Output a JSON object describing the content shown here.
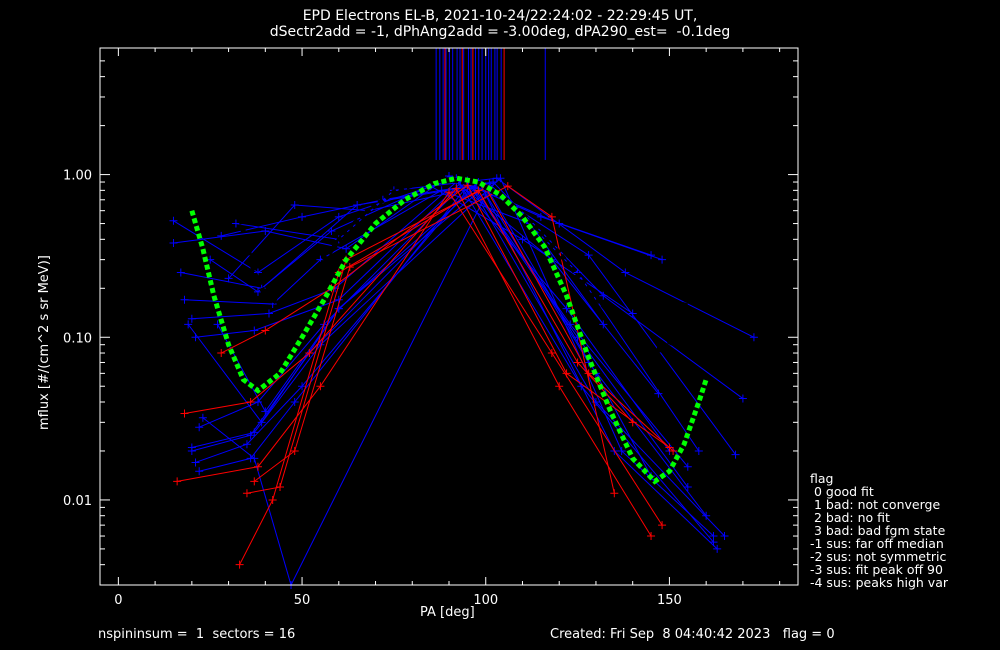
{
  "chart_data": {
    "type": "line",
    "title": "EPD Electrons EL-B, 2021-10-24/22:24:02 - 22:29:45 UT,",
    "subtitle": "dSectr2add = -1, dPhAng2add = -3.00deg, dPA290_est=  -0.1deg",
    "xlabel": "PA [deg]",
    "ylabel": "mflux [#/(cm^2 s sr MeV)]",
    "xlim": [
      -5,
      185
    ],
    "ylim": [
      0.003,
      6
    ],
    "yscale": "log",
    "xticks": [
      "0",
      "50",
      "100",
      "150"
    ],
    "yticks": [
      "0.01",
      "0.10",
      "1.00"
    ],
    "series": [
      {
        "color": "#0000ff",
        "x": [
          15,
          38,
          60,
          92,
          120,
          148
        ],
        "y": [
          0.52,
          0.25,
          0.55,
          0.95,
          0.5,
          0.3
        ]
      },
      {
        "color": "#0000ff",
        "x": [
          15,
          40,
          62,
          90,
          115,
          145
        ],
        "y": [
          0.38,
          0.45,
          0.35,
          0.98,
          0.55,
          0.32
        ]
      },
      {
        "color": "#0000ff",
        "x": [
          17,
          39,
          58,
          85,
          110,
          140
        ],
        "y": [
          0.25,
          0.2,
          0.45,
          0.85,
          0.4,
          0.14
        ]
      },
      {
        "color": "#0000ff",
        "x": [
          18,
          42,
          55,
          88,
          112,
          132
        ],
        "y": [
          0.17,
          0.16,
          0.3,
          0.8,
          0.5,
          0.12
        ]
      },
      {
        "color": "#0000ff",
        "x": [
          20,
          41,
          59,
          92,
          118,
          147
        ],
        "y": [
          0.13,
          0.14,
          0.2,
          0.9,
          0.3,
          0.045
        ]
      },
      {
        "color": "#0000ff",
        "x": [
          21,
          37,
          60,
          93,
          122,
          150
        ],
        "y": [
          0.1,
          0.11,
          0.17,
          0.88,
          0.15,
          0.02
        ]
      },
      {
        "color": "#0000ff",
        "x": [
          22,
          38,
          56,
          95,
          125,
          155
        ],
        "y": [
          0.028,
          0.04,
          0.12,
          0.92,
          0.1,
          0.012
        ]
      },
      {
        "color": "#0000ff",
        "x": [
          20,
          36,
          52,
          98,
          128,
          160
        ],
        "y": [
          0.02,
          0.025,
          0.08,
          0.9,
          0.07,
          0.008
        ]
      },
      {
        "color": "#0000ff",
        "x": [
          21,
          35,
          50,
          96,
          130,
          165
        ],
        "y": [
          0.017,
          0.022,
          0.05,
          0.85,
          0.04,
          0.006
        ]
      },
      {
        "color": "#0000ff",
        "x": [
          22,
          36,
          48,
          94,
          126,
          162
        ],
        "y": [
          0.015,
          0.018,
          0.04,
          0.8,
          0.05,
          0.0055
        ]
      },
      {
        "color": "#0000ff",
        "x": [
          23,
          37,
          47,
          100,
          135,
          163
        ],
        "y": [
          0.032,
          0.018,
          0.003,
          0.75,
          0.02,
          0.005
        ]
      },
      {
        "color": "#0000ff",
        "x": [
          25,
          38,
          65,
          101,
          125,
          158
        ],
        "y": [
          0.3,
          0.19,
          0.65,
          0.88,
          0.25,
          0.02
        ]
      },
      {
        "color": "#0000ff",
        "x": [
          28,
          50,
          72,
          102,
          132,
          170
        ],
        "y": [
          0.42,
          0.55,
          0.7,
          0.9,
          0.18,
          0.042
        ]
      },
      {
        "color": "#0000ff",
        "x": [
          32,
          60,
          75,
          103,
          138,
          173
        ],
        "y": [
          0.5,
          0.4,
          0.8,
          0.95,
          0.25,
          0.1
        ]
      },
      {
        "color": "#0000ff",
        "x": [
          30,
          48,
          68,
          99,
          128,
          168
        ],
        "y": [
          0.23,
          0.65,
          0.6,
          0.85,
          0.32,
          0.019
        ]
      },
      {
        "color": "#0000ff",
        "x": [
          27,
          40,
          60,
          97,
          123,
          155
        ],
        "y": [
          0.12,
          0.035,
          0.15,
          0.82,
          0.12,
          0.016
        ]
      },
      {
        "color": "#0000ff",
        "x": [
          19,
          39,
          60,
          100,
          130,
          145
        ],
        "y": [
          0.12,
          0.03,
          0.15,
          0.85,
          0.06,
          0.014
        ]
      },
      {
        "color": "#0000ff",
        "x": [
          20,
          37,
          55,
          104,
          137,
          162
        ],
        "y": [
          0.021,
          0.026,
          0.09,
          0.95,
          0.02,
          0.006
        ]
      },
      {
        "color": "#ff0000",
        "x": [
          16,
          38,
          55,
          90,
          118,
          148
        ],
        "y": [
          0.013,
          0.016,
          0.05,
          0.78,
          0.08,
          0.007
        ]
      },
      {
        "color": "#ff0000",
        "x": [
          18,
          36,
          52,
          92,
          120,
          145
        ],
        "y": [
          0.034,
          0.04,
          0.08,
          0.82,
          0.05,
          0.006
        ]
      },
      {
        "color": "#ff0000",
        "x": [
          28,
          40,
          58,
          95,
          122,
          150
        ],
        "y": [
          0.08,
          0.11,
          0.2,
          0.86,
          0.06,
          0.021
        ]
      },
      {
        "color": "#ff0000",
        "x": [
          33,
          42,
          60,
          98,
          125,
          140
        ],
        "y": [
          0.004,
          0.01,
          0.25,
          0.8,
          0.07,
          0.03
        ]
      },
      {
        "color": "#ff0000",
        "x": [
          35,
          44,
          62,
          100,
          128,
          151
        ],
        "y": [
          0.011,
          0.012,
          0.3,
          0.83,
          0.06,
          0.02
        ]
      },
      {
        "color": "#ff0000",
        "x": [
          37,
          48,
          63,
          106,
          118,
          135
        ],
        "y": [
          0.013,
          0.02,
          0.27,
          0.85,
          0.55,
          0.011
        ]
      }
    ],
    "reference_curves": [
      {
        "color": "#000000",
        "style": "dotted",
        "x": [
          25,
          28,
          31,
          34,
          37,
          40,
          44,
          50,
          56,
          62,
          68,
          75,
          82,
          90,
          98,
          105,
          112,
          120,
          128,
          135,
          140,
          145,
          149,
          152,
          155,
          158,
          160
        ],
        "y": [
          5.5,
          2.5,
          1.0,
          0.45,
          0.25,
          0.18,
          0.16,
          0.2,
          0.3,
          0.45,
          0.6,
          0.78,
          0.9,
          0.93,
          0.88,
          0.72,
          0.52,
          0.33,
          0.2,
          0.13,
          0.1,
          0.085,
          0.083,
          0.11,
          0.18,
          0.3,
          0.5
        ]
      },
      {
        "color": "#00ff00",
        "style": "dotted",
        "x": [
          20,
          23,
          26,
          30,
          34,
          38,
          44,
          50,
          56,
          62,
          70,
          78,
          86,
          92,
          98,
          104,
          110,
          116,
          122,
          128,
          134,
          140,
          146,
          150,
          154,
          158,
          160
        ],
        "y": [
          0.6,
          0.35,
          0.18,
          0.09,
          0.055,
          0.047,
          0.06,
          0.1,
          0.17,
          0.3,
          0.5,
          0.7,
          0.88,
          0.95,
          0.9,
          0.75,
          0.55,
          0.36,
          0.18,
          0.075,
          0.035,
          0.018,
          0.013,
          0.015,
          0.022,
          0.04,
          0.055
        ]
      }
    ],
    "top_ticks": [
      {
        "color": "#0000ff",
        "x": [
          86.5,
          87.5,
          88.4,
          89.2,
          90.1,
          91.0,
          92.2,
          93.0,
          94.0,
          95.3,
          96.0,
          97.2,
          98.1,
          99.0,
          100.0,
          100.8,
          101.5,
          102.5,
          103.1,
          104.2,
          116.2
        ]
      },
      {
        "color": "#ff0000",
        "x": [
          88.9,
          93.6,
          96.5,
          105.0
        ]
      }
    ],
    "legend": {
      "title": "flag",
      "entries": [
        " 0 good fit",
        " 1 bad: not converge",
        " 2 bad: no fit",
        " 3 bad: bad fgm state",
        "-1 sus: far off median",
        "-2 sus: not symmetric",
        "-3 sus: fit peak off 90",
        "-4 sus: peaks high var"
      ]
    }
  },
  "footer": {
    "left": "nspininsum =  1  sectors = 16",
    "right": "Created: Fri Sep  8 04:40:42 2023   flag = 0"
  }
}
